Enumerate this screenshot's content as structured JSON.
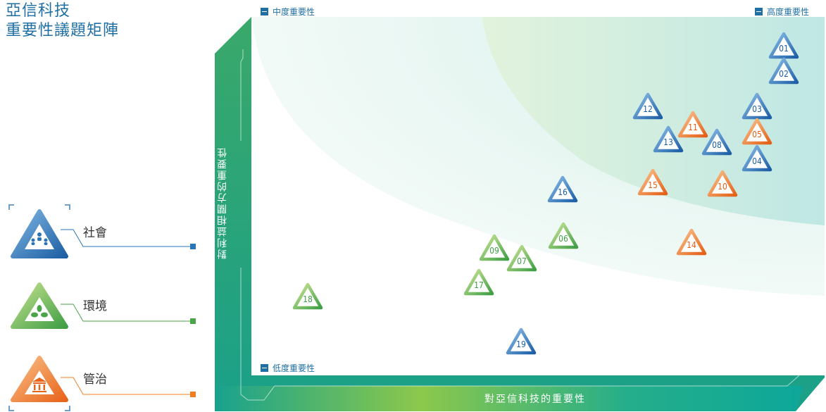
{
  "title": {
    "line1": "亞信科技",
    "line2": "重要性議題矩陣"
  },
  "legend": [
    {
      "key": "social",
      "label": "社會",
      "color": "#2a74b8",
      "icon": "people-icon"
    },
    {
      "key": "environment",
      "label": "環境",
      "color": "#5cb84c",
      "icon": "leaf-icon"
    },
    {
      "key": "governance",
      "label": "管治",
      "color": "#f07f22",
      "icon": "building-icon"
    }
  ],
  "axes": {
    "y_label": "對利益相關方的重要性",
    "x_label": "對亞信科技的重要性"
  },
  "regions": {
    "medium": "中度重要性",
    "high": "高度重要性",
    "low": "低度重要性"
  },
  "topics": [
    {
      "id": "01",
      "category": "social"
    },
    {
      "id": "02",
      "category": "social"
    },
    {
      "id": "03",
      "category": "social"
    },
    {
      "id": "04",
      "category": "social"
    },
    {
      "id": "05",
      "category": "governance"
    },
    {
      "id": "06",
      "category": "environment"
    },
    {
      "id": "07",
      "category": "environment"
    },
    {
      "id": "08",
      "category": "social"
    },
    {
      "id": "09",
      "category": "environment"
    },
    {
      "id": "10",
      "category": "governance"
    },
    {
      "id": "11",
      "category": "governance"
    },
    {
      "id": "12",
      "category": "social"
    },
    {
      "id": "13",
      "category": "social"
    },
    {
      "id": "14",
      "category": "governance"
    },
    {
      "id": "15",
      "category": "governance"
    },
    {
      "id": "16",
      "category": "social"
    },
    {
      "id": "17",
      "category": "environment"
    },
    {
      "id": "18",
      "category": "environment"
    },
    {
      "id": "19",
      "category": "social"
    }
  ]
}
